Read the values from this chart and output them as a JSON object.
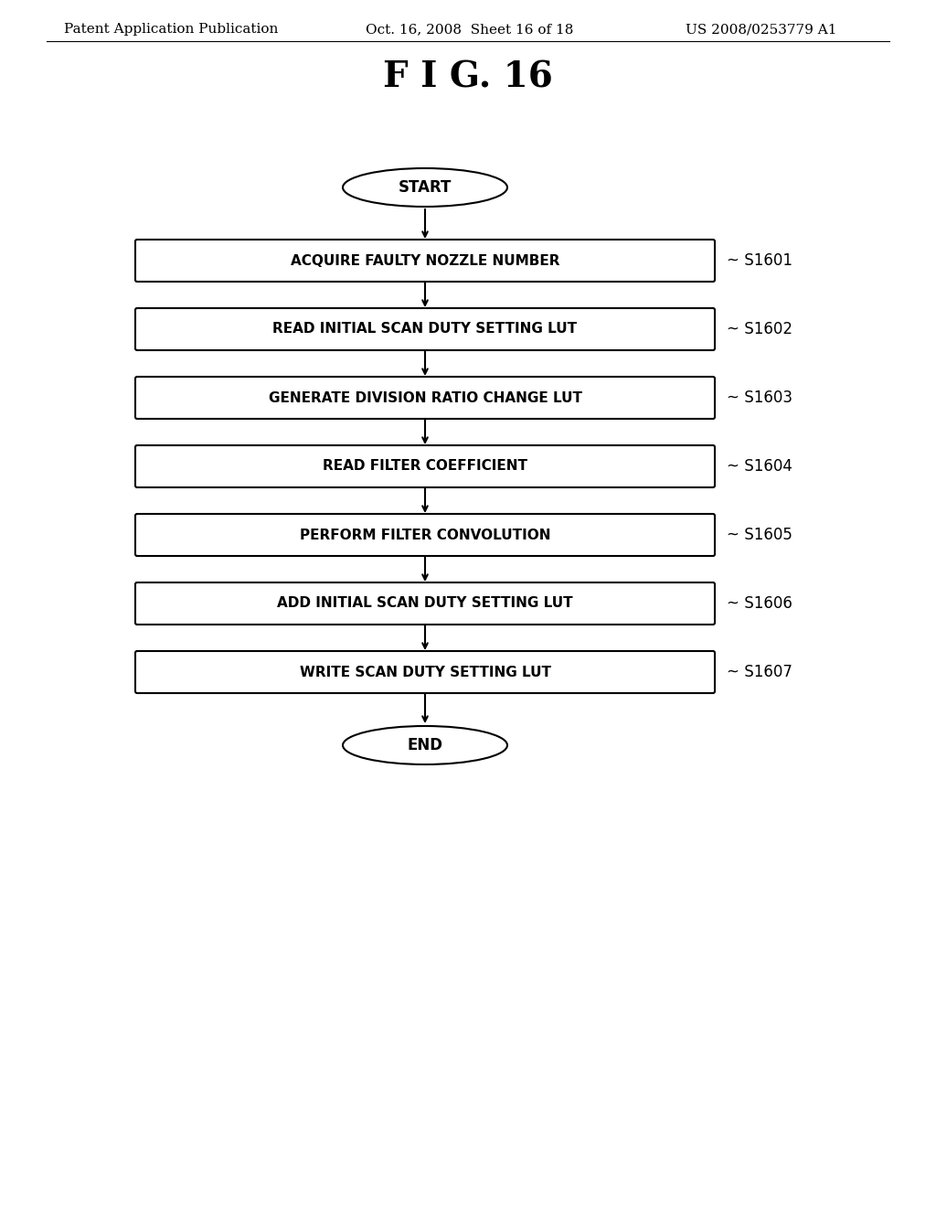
{
  "title": "F I G. 16",
  "header_left": "Patent Application Publication",
  "header_mid": "Oct. 16, 2008  Sheet 16 of 18",
  "header_right": "US 2008/0253779 A1",
  "start_label": "START",
  "end_label": "END",
  "steps": [
    {
      "label": "ACQUIRE FAULTY NOZZLE NUMBER",
      "step_id": "S1601"
    },
    {
      "label": "READ INITIAL SCAN DUTY SETTING LUT",
      "step_id": "S1602"
    },
    {
      "label": "GENERATE DIVISION RATIO CHANGE LUT",
      "step_id": "S1603"
    },
    {
      "label": "READ FILTER COEFFICIENT",
      "step_id": "S1604"
    },
    {
      "label": "PERFORM FILTER CONVOLUTION",
      "step_id": "S1605"
    },
    {
      "label": "ADD INITIAL SCAN DUTY SETTING LUT",
      "step_id": "S1606"
    },
    {
      "label": "WRITE SCAN DUTY SETTING LUT",
      "step_id": "S1607"
    }
  ],
  "bg_color": "#ffffff",
  "box_edge_color": "#000000",
  "text_color": "#000000",
  "arrow_color": "#000000",
  "fig_title_fontsize": 28,
  "header_fontsize": 11,
  "step_fontsize": 11,
  "label_fontsize": 12,
  "stepid_fontsize": 12
}
